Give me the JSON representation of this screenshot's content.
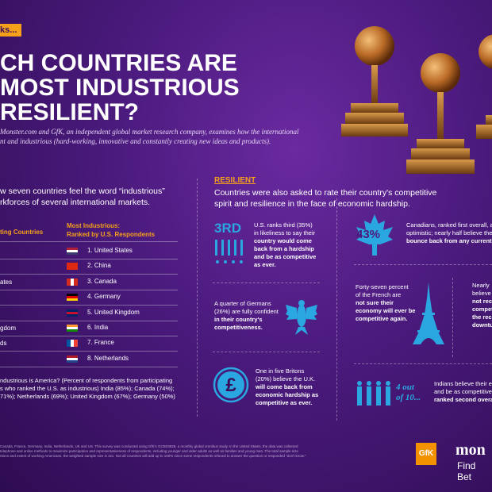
{
  "header": {
    "tag": "ks...",
    "title_lines": [
      "CH COUNTRIES ARE",
      "MOST INDUSTRIOUS",
      "RESILIENT?"
    ],
    "subtitle_lines": [
      "Monster.com and GfK, an independent global market research company, examines how the international",
      "nt and industrious (hard-working, innovative and constantly creating new ideas and products)."
    ]
  },
  "industrious": {
    "intro_lines": [
      "w seven countries feel the word “industrious”",
      "rkforces of several international markets."
    ],
    "left_header": "ting Countries",
    "right_header_lines": [
      "Most Industrious:",
      "Ranked by U.S. Respondents"
    ],
    "ranked": [
      "1. United States",
      "2. China",
      "3. Canada",
      "4. Germany",
      "5. United Kingdom",
      "6. India",
      "7. France",
      "8. Netherlands"
    ],
    "left_fragments": [
      "ates",
      "gdom",
      "ds"
    ],
    "note_lines": [
      "ndustrious is America? (Percent of respondents from participating",
      "s who ranked the U.S. as industrious) India (85%); Canada (74%);",
      "71%); Netherlands (69%); United Kingdom (67%); Germany (50%)"
    ]
  },
  "resilient": {
    "heading": "RESILIENT",
    "intro_lines": [
      "Countries were also asked to rate their country's competitive",
      "spirit and resilience in the face of economic hardship."
    ],
    "us": {
      "badge": "3RD",
      "lines": [
        "U.S. ranks third (35%)",
        "in likeliness to say their",
        "country would come",
        "back from a hardship",
        "and be as competitive",
        "as ever."
      ]
    },
    "germany": {
      "lines": [
        "A quarter of Germans",
        "(26%) are fully confident",
        "in their country's",
        "competitiveness."
      ]
    },
    "britain": {
      "lines": [
        "One in five Britons",
        "(20%) believe the U.K.",
        "will come back from",
        "economic hardship as",
        "competitive as ever."
      ]
    },
    "canada": {
      "badge": "43%",
      "lines": [
        "Canadians, ranked first overall, a",
        "optimistic; nearly half believe the",
        "bounce back from any current e"
      ]
    },
    "france": {
      "lines": [
        "Forty-seven percent",
        "of the French are",
        "not sure their",
        "economy will ever be",
        "competitive again."
      ]
    },
    "cropped": {
      "lines": [
        "Nearly",
        "believe",
        "not rec",
        "compet",
        "the rec",
        "downtu"
      ]
    },
    "india": {
      "badge_lines": [
        "4 out",
        "of 10..."
      ],
      "lines": [
        "Indians believe their e",
        "and be as competitive",
        "ranked second overall"
      ]
    }
  },
  "footer": {
    "fine_print_lines": [
      "Canada, France, Germany, India, Netherlands, UK and US. This survey was conducted using GfK's GCB03828, a monthly global omnibus study. In the United States, the data was collected",
      "telephone and online methods to maximize participation and representativeness of respondents, including younger and older adults as well as families and young men. The total sample size",
      "rtions and extent of working Americans, the weighted sample size is 311. Not all countries will add up to 100% since some respondents refused to answer the question or responded “don't know.”"
    ],
    "gfk": "GfK",
    "monster": "mon",
    "tagline": "Find Bet"
  }
}
